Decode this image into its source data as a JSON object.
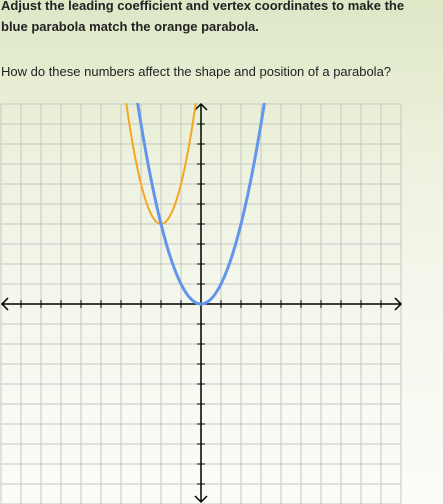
{
  "instructions": {
    "line1": "Adjust the leading coefficient and vertex coordinates to make the",
    "line2": "blue parabola match the orange parabola."
  },
  "question": "How do these numbers affect the shape and position of a parabola?",
  "graph": {
    "x_range": [
      -10,
      10
    ],
    "y_range": [
      -10,
      10
    ],
    "grid": true,
    "tick_step": 1,
    "colors": {
      "grid": "#c4c8c0",
      "axes": "#000000",
      "target": "#f5a623",
      "adjustable": "#6495ed"
    },
    "target_parabola": {
      "a": 2,
      "h": -2,
      "k": 4
    },
    "adjustable_parabola": {
      "a": 1,
      "h": 0,
      "k": 0
    }
  }
}
